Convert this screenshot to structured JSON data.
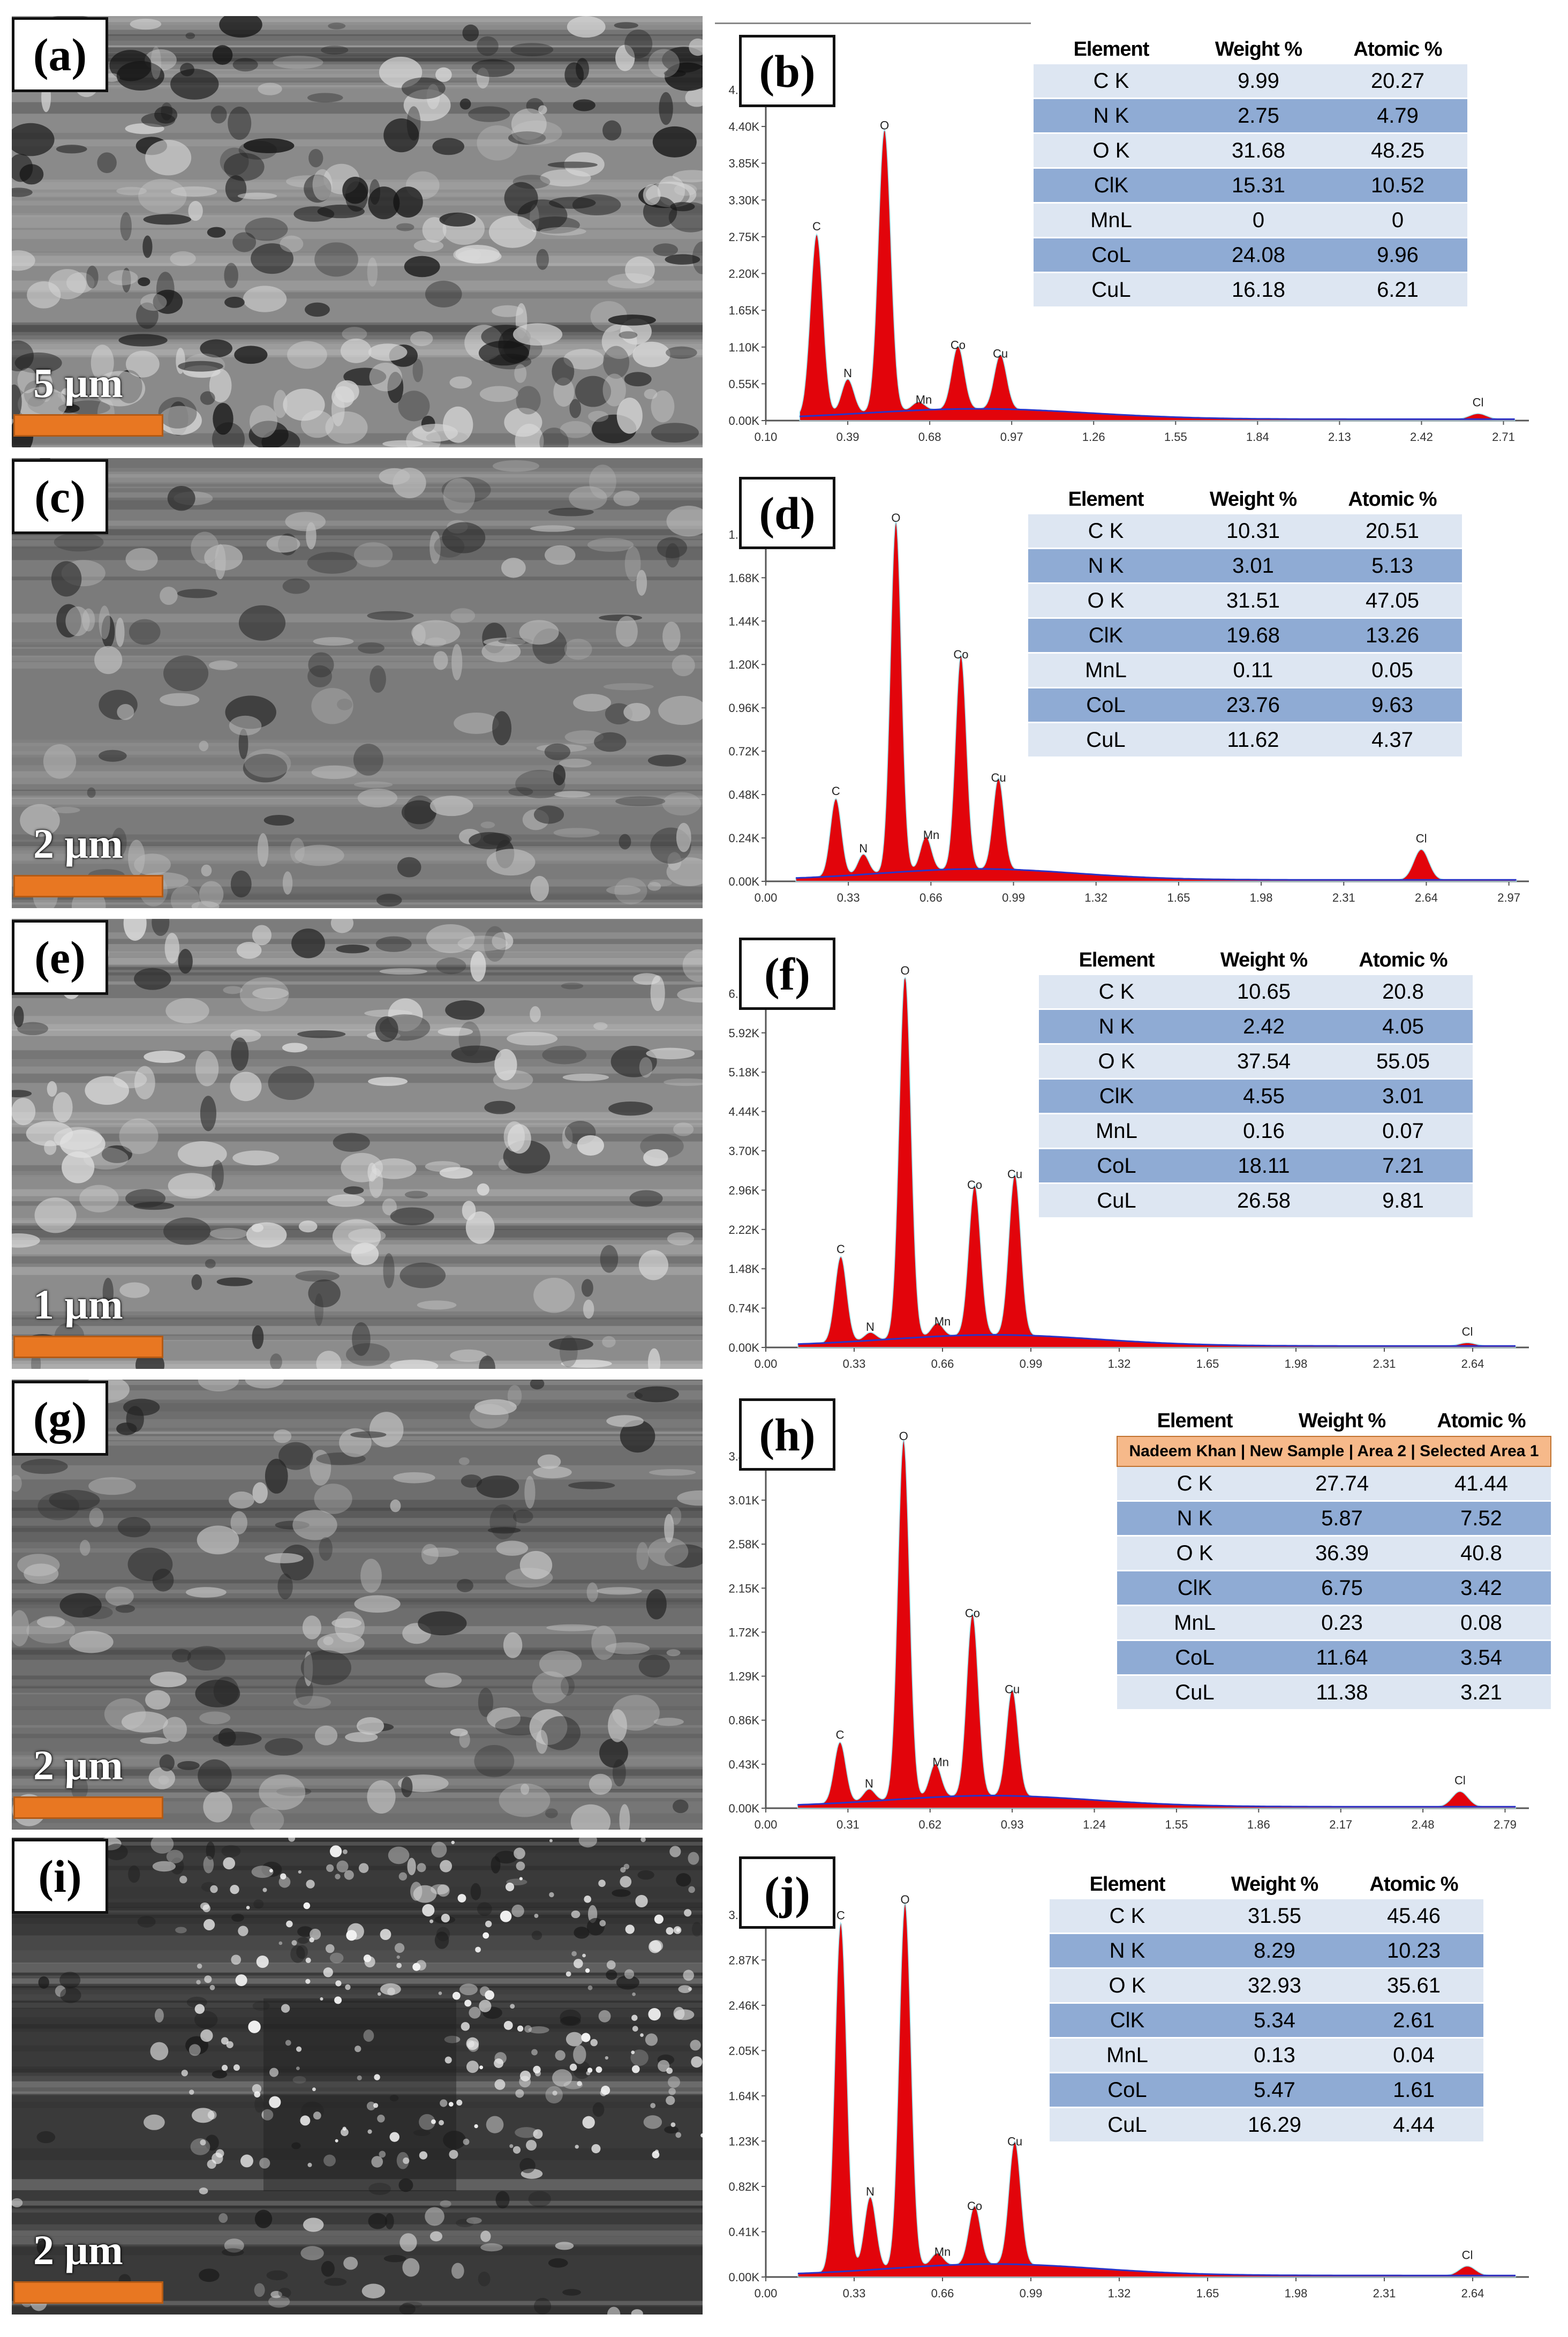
{
  "panels": [
    {
      "sem_label": "(a)",
      "scale_text": "5 μm",
      "eds_label": "(b)",
      "columns": [
        "Element",
        "Weight %",
        "Atomic %"
      ],
      "source_row": null,
      "rows": [
        [
          "C K",
          "9.99",
          "20.27"
        ],
        [
          "N K",
          "2.75",
          "4.79"
        ],
        [
          "O K",
          "31.68",
          "48.25"
        ],
        [
          "ClK",
          "15.31",
          "10.52"
        ],
        [
          "MnL",
          "0",
          "0"
        ],
        [
          "CoL",
          "24.08",
          "9.96"
        ],
        [
          "CuL",
          "16.18",
          "6.21"
        ]
      ]
    },
    {
      "sem_label": "(c)",
      "scale_text": "2 μm",
      "eds_label": "(d)",
      "columns": [
        "Element",
        "Weight %",
        "Atomic %"
      ],
      "source_row": null,
      "rows": [
        [
          "C K",
          "10.31",
          "20.51"
        ],
        [
          "N K",
          "3.01",
          "5.13"
        ],
        [
          "O K",
          "31.51",
          "47.05"
        ],
        [
          "ClK",
          "19.68",
          "13.26"
        ],
        [
          "MnL",
          "0.11",
          "0.05"
        ],
        [
          "CoL",
          "23.76",
          "9.63"
        ],
        [
          "CuL",
          "11.62",
          "4.37"
        ]
      ]
    },
    {
      "sem_label": "(e)",
      "scale_text": "1 μm",
      "eds_label": "(f)",
      "columns": [
        "Element",
        "Weight %",
        "Atomic %"
      ],
      "source_row": null,
      "rows": [
        [
          "C K",
          "10.65",
          "20.8"
        ],
        [
          "N K",
          "2.42",
          "4.05"
        ],
        [
          "O K",
          "37.54",
          "55.05"
        ],
        [
          "ClK",
          "4.55",
          "3.01"
        ],
        [
          "MnL",
          "0.16",
          "0.07"
        ],
        [
          "CoL",
          "18.11",
          "7.21"
        ],
        [
          "CuL",
          "26.58",
          "9.81"
        ]
      ]
    },
    {
      "sem_label": "(g)",
      "scale_text": "2 μm",
      "eds_label": "(h)",
      "columns": [
        "Element",
        "Weight %",
        "Atomic %"
      ],
      "source_row": "Nadeem Khan | New Sample | Area 2 | Selected Area 1",
      "rows": [
        [
          "C K",
          "27.74",
          "41.44"
        ],
        [
          "N K",
          "5.87",
          "7.52"
        ],
        [
          "O K",
          "36.39",
          "40.8"
        ],
        [
          "ClK",
          "6.75",
          "3.42"
        ],
        [
          "MnL",
          "0.23",
          "0.08"
        ],
        [
          "CoL",
          "11.64",
          "3.54"
        ],
        [
          "CuL",
          "11.38",
          "3.21"
        ]
      ]
    },
    {
      "sem_label": "(i)",
      "scale_text": "2 μm",
      "eds_label": "(j)",
      "columns": [
        "Element",
        "Weight %",
        "Atomic %"
      ],
      "source_row": null,
      "rows": [
        [
          "C K",
          "31.55",
          "45.46"
        ],
        [
          "N K",
          "8.29",
          "10.23"
        ],
        [
          "O K",
          "32.93",
          "35.61"
        ],
        [
          "ClK",
          "5.34",
          "2.61"
        ],
        [
          "MnL",
          "0.13",
          "0.04"
        ],
        [
          "CoL",
          "5.47",
          "1.61"
        ],
        [
          "CuL",
          "16.29",
          "4.44"
        ]
      ]
    }
  ],
  "chart_data": [
    {
      "type": "area",
      "title": "",
      "xlabel": "",
      "ylabel": "",
      "x_ticks": [
        "0.10",
        "0.39",
        "0.68",
        "0.97",
        "1.26",
        "1.55",
        "1.84",
        "2.13",
        "2.42",
        "2.71"
      ],
      "y_ticks": [
        "0.00K",
        "0.55K",
        "1.10K",
        "1.65K",
        "2.20K",
        "2.75K",
        "3.30K",
        "3.85K",
        "4.40K",
        "4.95K"
      ],
      "xlim": [
        0.1,
        2.8
      ],
      "ylim": [
        0,
        4950
      ],
      "peaks": [
        {
          "label": "C",
          "x": 0.28,
          "y": 2600
        },
        {
          "label": "N",
          "x": 0.39,
          "y": 500
        },
        {
          "label": "O",
          "x": 0.52,
          "y": 4050
        },
        {
          "label": "Mn",
          "x": 0.64,
          "y": 120
        },
        {
          "label": "Co",
          "x": 0.78,
          "y": 900
        },
        {
          "label": "Cu",
          "x": 0.93,
          "y": 780
        },
        {
          "label": "Cl",
          "x": 2.62,
          "y": 80
        }
      ]
    },
    {
      "type": "area",
      "title": "",
      "xlabel": "",
      "ylabel": "",
      "x_ticks": [
        "0.00",
        "0.33",
        "0.66",
        "0.99",
        "1.32",
        "1.65",
        "1.98",
        "2.31",
        "2.64",
        "2.97"
      ],
      "y_ticks": [
        "0.00K",
        "0.24K",
        "0.48K",
        "0.72K",
        "0.96K",
        "1.20K",
        "1.44K",
        "1.68K",
        "1.92K"
      ],
      "xlim": [
        0,
        3.05
      ],
      "ylim": [
        0,
        2160
      ],
      "peaks": [
        {
          "label": "C",
          "x": 0.28,
          "y": 460
        },
        {
          "label": "N",
          "x": 0.39,
          "y": 120
        },
        {
          "label": "O",
          "x": 0.52,
          "y": 2080
        },
        {
          "label": "Mn",
          "x": 0.64,
          "y": 200
        },
        {
          "label": "Co",
          "x": 0.78,
          "y": 1270
        },
        {
          "label": "Cu",
          "x": 0.93,
          "y": 540
        },
        {
          "label": "Cl",
          "x": 2.62,
          "y": 180
        }
      ]
    },
    {
      "type": "area",
      "title": "",
      "xlabel": "",
      "ylabel": "",
      "x_ticks": [
        "0.00",
        "0.33",
        "0.66",
        "0.99",
        "1.32",
        "1.65",
        "1.98",
        "2.31",
        "2.64"
      ],
      "y_ticks": [
        "0.00K",
        "0.74K",
        "1.48K",
        "2.22K",
        "2.96K",
        "3.70K",
        "4.44K",
        "5.18K",
        "5.92K",
        "6.66K"
      ],
      "xlim": [
        0,
        2.85
      ],
      "ylim": [
        0,
        6900
      ],
      "peaks": [
        {
          "label": "C",
          "x": 0.28,
          "y": 1600
        },
        {
          "label": "N",
          "x": 0.39,
          "y": 150
        },
        {
          "label": "O",
          "x": 0.52,
          "y": 6800
        },
        {
          "label": "Mn",
          "x": 0.64,
          "y": 250
        },
        {
          "label": "Co",
          "x": 0.78,
          "y": 2800
        },
        {
          "label": "Cu",
          "x": 0.93,
          "y": 3000
        },
        {
          "label": "Cl",
          "x": 2.62,
          "y": 60
        }
      ]
    },
    {
      "type": "area",
      "title": "",
      "xlabel": "",
      "ylabel": "",
      "x_ticks": [
        "0.00",
        "0.31",
        "0.62",
        "0.93",
        "1.24",
        "1.55",
        "1.86",
        "2.17",
        "2.48",
        "2.79"
      ],
      "y_ticks": [
        "0.00K",
        "0.43K",
        "0.86K",
        "1.29K",
        "1.72K",
        "2.15K",
        "2.58K",
        "3.01K",
        "3.44K"
      ],
      "xlim": [
        0,
        2.88
      ],
      "ylim": [
        0,
        3650
      ],
      "peaks": [
        {
          "label": "C",
          "x": 0.28,
          "y": 600
        },
        {
          "label": "N",
          "x": 0.39,
          "y": 120
        },
        {
          "label": "O",
          "x": 0.52,
          "y": 3550
        },
        {
          "label": "Mn",
          "x": 0.64,
          "y": 330
        },
        {
          "label": "Co",
          "x": 0.78,
          "y": 1800
        },
        {
          "label": "Cu",
          "x": 0.93,
          "y": 1050
        },
        {
          "label": "Cl",
          "x": 2.62,
          "y": 150
        }
      ]
    },
    {
      "type": "area",
      "title": "",
      "xlabel": "",
      "ylabel": "",
      "x_ticks": [
        "0.00",
        "0.33",
        "0.66",
        "0.99",
        "1.32",
        "1.65",
        "1.98",
        "2.31",
        "2.64"
      ],
      "y_ticks": [
        "0.00K",
        "0.41K",
        "0.82K",
        "1.23K",
        "1.64K",
        "2.05K",
        "2.46K",
        "2.87K",
        "3.28K"
      ],
      "xlim": [
        0,
        2.85
      ],
      "ylim": [
        0,
        3650
      ],
      "peaks": [
        {
          "label": "C",
          "x": 0.28,
          "y": 3350
        },
        {
          "label": "N",
          "x": 0.39,
          "y": 700
        },
        {
          "label": "O",
          "x": 0.52,
          "y": 3500
        },
        {
          "label": "Mn",
          "x": 0.64,
          "y": 120
        },
        {
          "label": "Co",
          "x": 0.78,
          "y": 560
        },
        {
          "label": "Cu",
          "x": 0.93,
          "y": 1180
        },
        {
          "label": "Cl",
          "x": 2.62,
          "y": 90
        }
      ]
    }
  ],
  "colors": {
    "peak_fill": "#e2040b",
    "background_line": "#2a35c8",
    "scale_bar": "#e87722",
    "header_source": "#f6b98a"
  }
}
